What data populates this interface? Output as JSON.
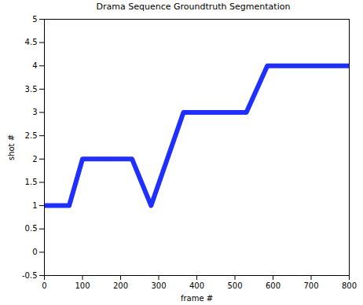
{
  "chart_data": {
    "type": "line",
    "title": "Drama Sequence Groundtruth Segmentation",
    "x_label": "frame #",
    "y_label": "shot #",
    "x": [
      0,
      65,
      100,
      230,
      280,
      365,
      530,
      585,
      800
    ],
    "values": [
      1,
      1,
      2,
      2,
      1,
      3,
      3,
      4,
      4
    ],
    "color": "#1f2fff",
    "line_style": "solid",
    "grid": false,
    "xlim": [
      0,
      800
    ],
    "xticks": [
      0,
      100,
      200,
      300,
      400,
      500,
      600,
      700,
      800
    ],
    "ylim": [
      -0.5,
      5
    ],
    "yticks": [
      -0.5,
      0,
      0.5,
      1,
      1.5,
      2,
      2.5,
      3,
      3.5,
      4,
      4.5,
      5
    ]
  }
}
